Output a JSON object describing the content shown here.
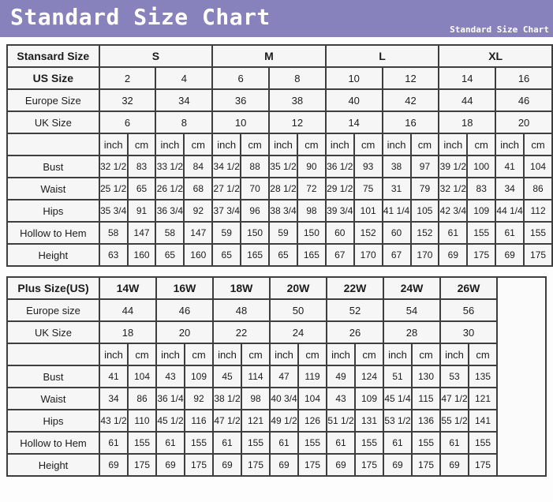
{
  "header": {
    "title": "Standard Size Chart",
    "subtitle": "Standard Size Chart"
  },
  "colors": {
    "banner_purple": "#8882bc",
    "table_border": "#3e3e3e",
    "cell_background": "#f6f6f6",
    "text": "#1c1c1c"
  },
  "chart_data": [
    {
      "type": "table",
      "title": "Standard Size",
      "corner_label": "Stansard Size",
      "size_groups": [
        "S",
        "M",
        "L",
        "XL"
      ],
      "header_rows": [
        {
          "label": "US Size",
          "bold": true,
          "values": [
            "2",
            "4",
            "6",
            "8",
            "10",
            "12",
            "14",
            "16"
          ]
        },
        {
          "label": "Europe Size",
          "bold": false,
          "values": [
            "32",
            "34",
            "36",
            "38",
            "40",
            "42",
            "44",
            "46"
          ]
        },
        {
          "label": "UK Size",
          "bold": false,
          "values": [
            "6",
            "8",
            "10",
            "12",
            "14",
            "16",
            "18",
            "20"
          ]
        }
      ],
      "unit_labels": [
        "inch",
        "cm"
      ],
      "measurement_rows": [
        {
          "label": "Bust",
          "values": [
            "32 1/2",
            "83",
            "33 1/2",
            "84",
            "34 1/2",
            "88",
            "35 1/2",
            "90",
            "36 1/2",
            "93",
            "38",
            "97",
            "39 1/2",
            "100",
            "41",
            "104"
          ]
        },
        {
          "label": "Waist",
          "values": [
            "25 1/2",
            "65",
            "26 1/2",
            "68",
            "27 1/2",
            "70",
            "28 1/2",
            "72",
            "29 1/2",
            "75",
            "31",
            "79",
            "32 1/2",
            "83",
            "34",
            "86"
          ]
        },
        {
          "label": "Hips",
          "values": [
            "35 3/4",
            "91",
            "36 3/4",
            "92",
            "37 3/4",
            "96",
            "38 3/4",
            "98",
            "39 3/4",
            "101",
            "41 1/4",
            "105",
            "42 3/4",
            "109",
            "44 1/4",
            "112"
          ]
        },
        {
          "label": "Hollow to Hem",
          "values": [
            "58",
            "147",
            "58",
            "147",
            "59",
            "150",
            "59",
            "150",
            "60",
            "152",
            "60",
            "152",
            "61",
            "155",
            "61",
            "155"
          ]
        },
        {
          "label": "Height",
          "values": [
            "63",
            "160",
            "65",
            "160",
            "65",
            "165",
            "65",
            "165",
            "67",
            "170",
            "67",
            "170",
            "69",
            "175",
            "69",
            "175"
          ]
        }
      ]
    },
    {
      "type": "table",
      "title": "Plus Size",
      "corner_label": "Plus Size(US)",
      "size_groups": [
        "14W",
        "16W",
        "18W",
        "20W",
        "22W",
        "24W",
        "26W"
      ],
      "header_rows": [
        {
          "label": "Europe size",
          "bold": false,
          "values": [
            "44",
            "46",
            "48",
            "50",
            "52",
            "54",
            "56"
          ]
        },
        {
          "label": "UK Size",
          "bold": false,
          "values": [
            "18",
            "20",
            "22",
            "24",
            "26",
            "28",
            "30"
          ]
        }
      ],
      "unit_labels": [
        "inch",
        "cm"
      ],
      "measurement_rows": [
        {
          "label": "Bust",
          "values": [
            "41",
            "104",
            "43",
            "109",
            "45",
            "114",
            "47",
            "119",
            "49",
            "124",
            "51",
            "130",
            "53",
            "135"
          ]
        },
        {
          "label": "Waist",
          "values": [
            "34",
            "86",
            "36 1/4",
            "92",
            "38 1/2",
            "98",
            "40 3/4",
            "104",
            "43",
            "109",
            "45 1/4",
            "115",
            "47 1/2",
            "121"
          ]
        },
        {
          "label": "Hips",
          "values": [
            "43 1/2",
            "110",
            "45 1/2",
            "116",
            "47 1/2",
            "121",
            "49 1/2",
            "126",
            "51 1/2",
            "131",
            "53 1/2",
            "136",
            "55 1/2",
            "141"
          ]
        },
        {
          "label": "Hollow to Hem",
          "values": [
            "61",
            "155",
            "61",
            "155",
            "61",
            "155",
            "61",
            "155",
            "61",
            "155",
            "61",
            "155",
            "61",
            "155"
          ]
        },
        {
          "label": "Height",
          "values": [
            "69",
            "175",
            "69",
            "175",
            "69",
            "175",
            "69",
            "175",
            "69",
            "175",
            "69",
            "175",
            "69",
            "175"
          ]
        }
      ]
    }
  ]
}
